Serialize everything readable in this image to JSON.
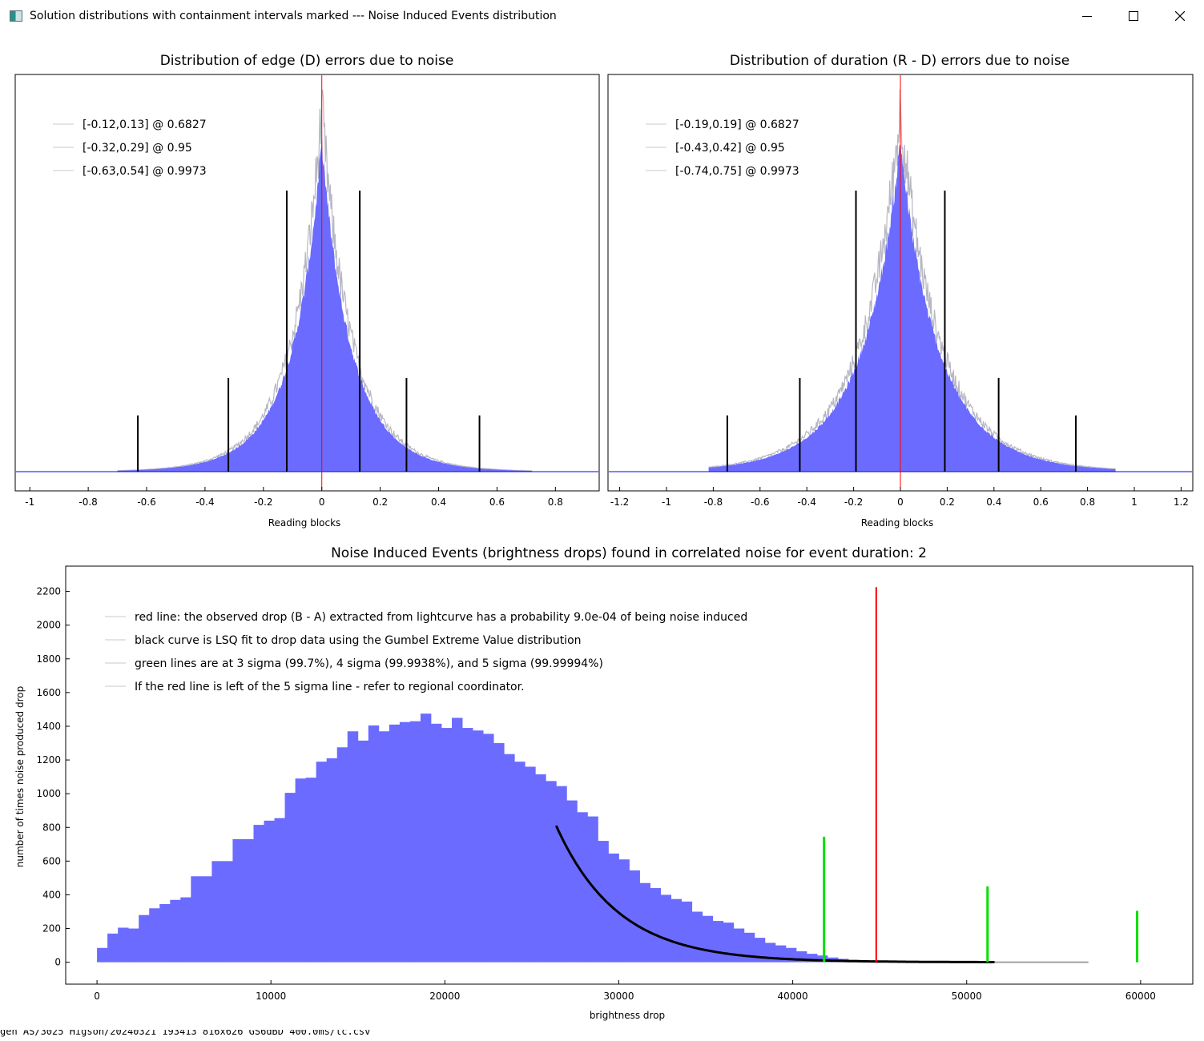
{
  "window": {
    "title": "Solution distributions with containment intervals marked --- Noise Induced Events distribution",
    "minimize_icon": "minimize-icon",
    "maximize_icon": "maximize-icon",
    "close_icon": "close-icon"
  },
  "bottom_strip_text": "gen AS/3025 Higson/20240321 193413 816x626 GS6dBD 400.0ms/lc.csv",
  "chart_data": [
    {
      "type": "bar",
      "title": "Distribution of edge (D) errors due to noise",
      "xlabel": "Reading blocks",
      "xlim": [
        -1.05,
        0.95
      ],
      "xticks": [
        -1,
        -0.8,
        -0.6,
        -0.4,
        -0.2,
        0,
        0.2,
        0.4,
        0.6,
        0.8
      ],
      "xtick_labels": [
        "-1",
        "-0.8",
        "-0.6",
        "-0.4",
        "-0.2",
        "0",
        "0.2",
        "0.4",
        "0.6",
        "0.8"
      ],
      "distribution": {
        "center": 0.0,
        "scale": 0.118,
        "shape": "laplace-like",
        "peak": 1.0
      },
      "support": [
        -0.7,
        0.72
      ],
      "vertical_reference": {
        "x": 0.0,
        "color": "#ff0000"
      },
      "intervals": [
        {
          "lo": -0.12,
          "hi": 0.13,
          "conf": "0.6827",
          "height": 0.75
        },
        {
          "lo": -0.32,
          "hi": 0.29,
          "conf": "0.95",
          "height": 0.25
        },
        {
          "lo": -0.63,
          "hi": 0.54,
          "conf": "0.9973",
          "height": 0.15
        }
      ],
      "legend": [
        "[-0.12,0.13] @ 0.6827",
        "[-0.32,0.29] @ 0.95",
        "[-0.63,0.54] @ 0.9973"
      ],
      "legend_position": "top-left",
      "colors": {
        "bars": "#6b6bff",
        "outline": "#b7b7c3",
        "baseline": "#0000ff",
        "interval": "#000000"
      }
    },
    {
      "type": "bar",
      "title": "Distribution of duration (R - D) errors due to noise",
      "xlabel": "Reading blocks",
      "xlim": [
        -1.25,
        1.25
      ],
      "xticks": [
        -1.2,
        -1,
        -0.8,
        -0.6,
        -0.4,
        -0.2,
        0,
        0.2,
        0.4,
        0.6,
        0.8,
        1,
        1.2
      ],
      "xtick_labels": [
        "-1.2",
        "-1",
        "-0.8",
        "-0.6",
        "-0.4",
        "-0.2",
        "0",
        "0.2",
        "0.4",
        "0.6",
        "0.8",
        "1",
        "1.2"
      ],
      "distribution": {
        "center": 0.0,
        "scale": 0.19,
        "shape": "laplace-like",
        "peak": 1.0
      },
      "support": [
        -0.82,
        0.92
      ],
      "vertical_reference": {
        "x": 0.0,
        "color": "#ff0000"
      },
      "intervals": [
        {
          "lo": -0.19,
          "hi": 0.19,
          "conf": "0.6827",
          "height": 0.75
        },
        {
          "lo": -0.43,
          "hi": 0.42,
          "conf": "0.95",
          "height": 0.25
        },
        {
          "lo": -0.74,
          "hi": 0.75,
          "conf": "0.9973",
          "height": 0.15
        }
      ],
      "legend": [
        "[-0.19,0.19] @ 0.6827",
        "[-0.43,0.42] @ 0.95",
        "[-0.74,0.75] @ 0.9973"
      ],
      "legend_position": "top-left",
      "colors": {
        "bars": "#6b6bff",
        "outline": "#b7b7c3",
        "baseline": "#0000ff",
        "interval": "#000000"
      }
    },
    {
      "type": "bar",
      "title": "Noise Induced Events (brightness drops) found in correlated noise for event duration: 2",
      "xlabel": "brightness drop",
      "ylabel": "number of times noise produced drop",
      "xlim": [
        -1800,
        63000
      ],
      "ylim": [
        -130,
        2350
      ],
      "xticks": [
        0,
        10000,
        20000,
        30000,
        40000,
        50000,
        60000
      ],
      "xtick_labels": [
        "0",
        "10000",
        "20000",
        "30000",
        "40000",
        "50000",
        "60000"
      ],
      "yticks": [
        0,
        200,
        400,
        600,
        800,
        1000,
        1200,
        1400,
        1600,
        1800,
        2000,
        2200
      ],
      "ytick_labels": [
        "0",
        "200",
        "400",
        "600",
        "800",
        "1000",
        "1200",
        "1400",
        "1600",
        "1800",
        "2000",
        "2200"
      ],
      "bin_start": 0,
      "bin_width": 600,
      "values": [
        85,
        170,
        205,
        200,
        280,
        320,
        345,
        370,
        385,
        510,
        510,
        600,
        600,
        730,
        730,
        815,
        840,
        855,
        1005,
        1090,
        1095,
        1190,
        1210,
        1275,
        1370,
        1315,
        1405,
        1370,
        1410,
        1425,
        1430,
        1475,
        1415,
        1390,
        1450,
        1390,
        1375,
        1355,
        1300,
        1235,
        1190,
        1160,
        1115,
        1075,
        1045,
        960,
        890,
        865,
        720,
        645,
        610,
        545,
        470,
        440,
        400,
        375,
        360,
        300,
        275,
        245,
        235,
        200,
        175,
        145,
        115,
        100,
        85,
        65,
        50,
        40,
        28,
        20,
        14,
        10,
        8,
        6,
        5,
        4,
        3,
        2,
        2,
        1,
        1,
        1,
        1
      ],
      "gumbel_fit": {
        "x_start": 26400,
        "x_end": 51600,
        "y_at_start": 810,
        "decay": 3550
      },
      "observed_drop": {
        "x": 44800,
        "y": 2225,
        "color": "#ff0000"
      },
      "sigma_lines": [
        {
          "x": 41800,
          "y": 745,
          "label": "3 sigma"
        },
        {
          "x": 51200,
          "y": 450,
          "label": "4 sigma"
        },
        {
          "x": 59800,
          "y": 305,
          "label": "5 sigma"
        }
      ],
      "baseline_tail": [
        48000,
        57000
      ],
      "legend": [
        "red line: the observed drop (B - A) extracted from lightcurve has a probability 9.0e-04 of being noise induced",
        "black curve is LSQ fit to drop data using the Gumbel Extreme Value distribution",
        "green lines are at 3 sigma (99.7%), 4 sigma (99.9938%), and 5 sigma (99.99994%)",
        "If the red line is left of the 5 sigma line - refer to regional coordinator."
      ],
      "legend_position": "top-left",
      "colors": {
        "bars": "#6b6bff",
        "fit": "#000000",
        "observed": "#ff0000",
        "sigma": "#00e000",
        "tail": "#a0a0a0"
      }
    }
  ]
}
